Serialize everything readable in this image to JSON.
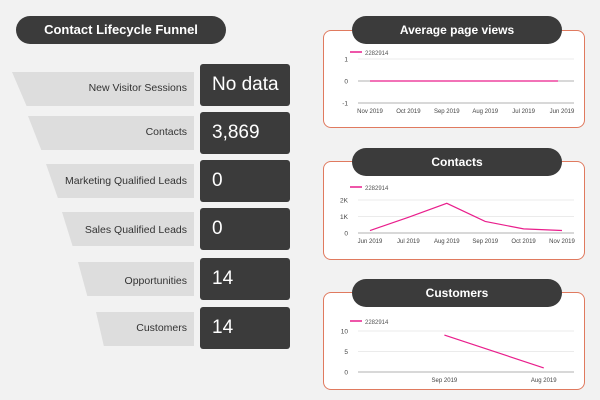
{
  "funnel": {
    "title": "Contact Lifecycle Funnel",
    "stages": [
      {
        "label": "New Visitor Sessions",
        "value": "No data"
      },
      {
        "label": "Contacts",
        "value": "3,869"
      },
      {
        "label": "Marketing Qualified Leads",
        "value": "0"
      },
      {
        "label": "Sales Qualified Leads",
        "value": "0"
      },
      {
        "label": "Opportunities",
        "value": "14"
      },
      {
        "label": "Customers",
        "value": "14"
      }
    ]
  },
  "colors": {
    "series_line": "#e91e8c",
    "card_border": "#e07a5f",
    "pill_bg": "#3b3b3b",
    "funnel_band": "#dddddd"
  },
  "chart_data": [
    {
      "title": "Average page views",
      "type": "line",
      "x": [
        "Nov 2019",
        "Oct 2019",
        "Sep 2019",
        "Aug 2019",
        "Jul 2019",
        "Jun 2019"
      ],
      "series": [
        {
          "name": "2282914",
          "values": [
            0,
            0,
            0,
            0,
            0,
            0
          ]
        }
      ],
      "yticks": [
        "1",
        "0",
        "-1"
      ],
      "ylim": [
        -1,
        1
      ]
    },
    {
      "title": "Contacts",
      "type": "line",
      "x": [
        "Jun 2019",
        "Jul 2019",
        "Aug 2019",
        "Sep 2019",
        "Oct 2019",
        "Nov 2019"
      ],
      "series": [
        {
          "name": "2282914",
          "values": [
            150,
            950,
            1800,
            700,
            250,
            150
          ]
        }
      ],
      "yticks": [
        "2K",
        "1K",
        "0"
      ],
      "ylim": [
        0,
        2000
      ]
    },
    {
      "title": "Customers",
      "type": "line",
      "x": [
        "Sep 2019",
        "Aug 2019"
      ],
      "series": [
        {
          "name": "2282914",
          "values": [
            9,
            1
          ]
        }
      ],
      "yticks": [
        "10",
        "5",
        "0"
      ],
      "ylim": [
        0,
        10
      ]
    }
  ]
}
